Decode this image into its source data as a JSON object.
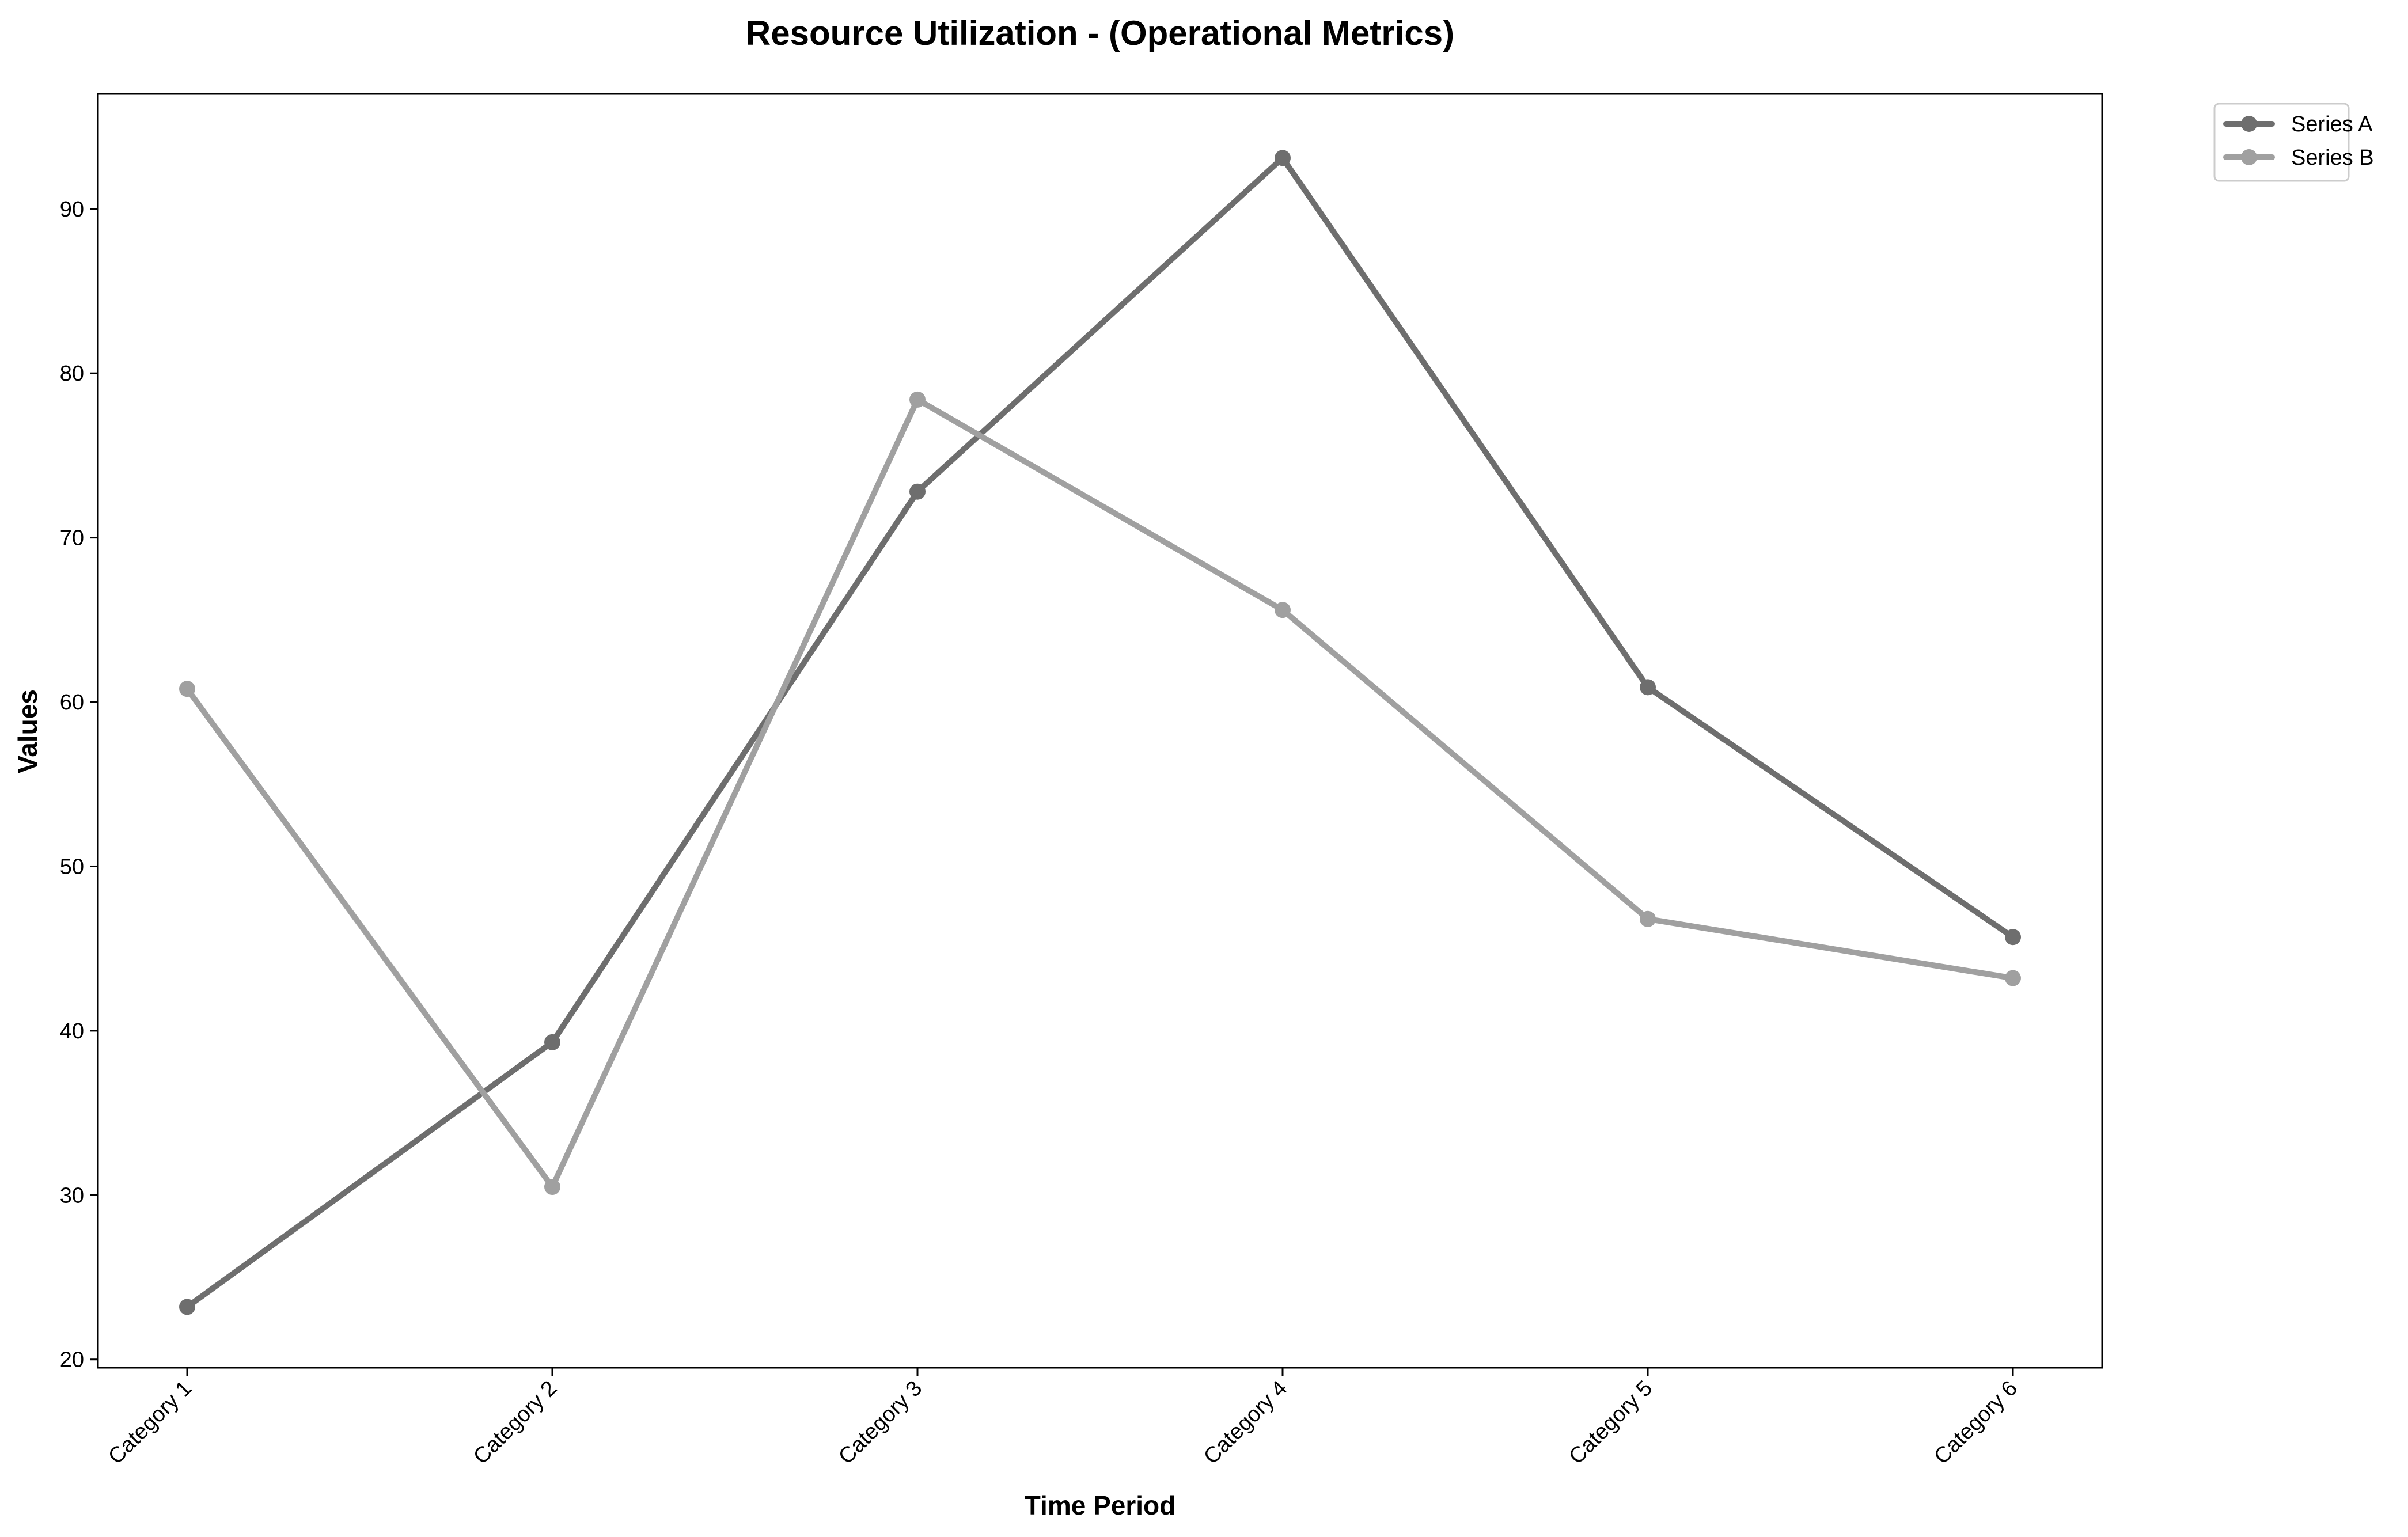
{
  "chart_data": {
    "type": "line",
    "title": "Resource Utilization - (Operational Metrics)",
    "xlabel": "Time Period",
    "ylabel": "Values",
    "categories": [
      "Category 1",
      "Category 2",
      "Category 3",
      "Category 4",
      "Category 5",
      "Category 6"
    ],
    "ylim": [
      19.5,
      97
    ],
    "yticks": [
      20,
      30,
      40,
      50,
      60,
      70,
      80,
      90
    ],
    "grid": false,
    "legend_position": "upper right, outside plot",
    "series": [
      {
        "name": "Series A",
        "color": "#6e6e6e",
        "values": [
          23.2,
          39.3,
          72.8,
          93.1,
          60.9,
          45.7
        ]
      },
      {
        "name": "Series B",
        "color": "#a0a0a0",
        "values": [
          60.8,
          30.5,
          78.4,
          65.6,
          46.8,
          43.2
        ]
      }
    ]
  }
}
